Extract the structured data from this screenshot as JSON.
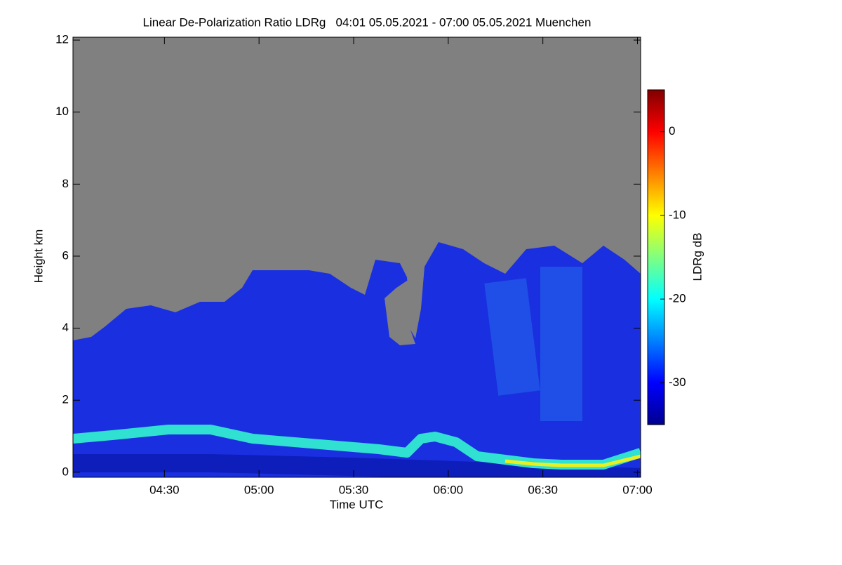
{
  "chart_data": {
    "type": "heatmap",
    "title": "Linear De-Polarization Ratio LDRg   04:01 05.05.2021 - 07:00 05.05.2021 Muenchen",
    "x_label": "Time UTC",
    "y_label": "Height km",
    "xlim": [
      241,
      421
    ],
    "xticks": [
      {
        "value": 270,
        "label": "04:30"
      },
      {
        "value": 300,
        "label": "05:00"
      },
      {
        "value": 330,
        "label": "05:30"
      },
      {
        "value": 360,
        "label": "06:00"
      },
      {
        "value": 390,
        "label": "06:30"
      },
      {
        "value": 420,
        "label": "07:00"
      }
    ],
    "ylim": [
      -0.14,
      12.08
    ],
    "yticks": [
      0,
      2,
      4,
      6,
      8,
      10,
      12
    ],
    "colorbar": {
      "label": "LDRg dB",
      "colormap": "jet",
      "clim": [
        -35,
        5
      ],
      "ticks": [
        0,
        -10,
        -20,
        -30
      ]
    }
  }
}
